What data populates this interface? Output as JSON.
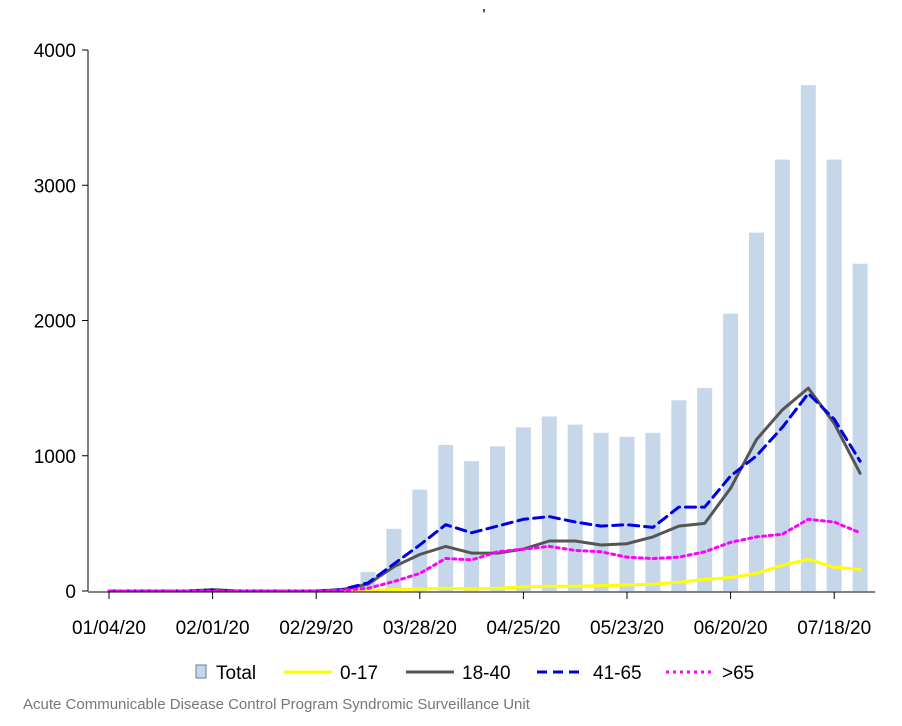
{
  "chart_data": {
    "type": "bar",
    "title": "'",
    "xlabel": "",
    "ylabel": "",
    "ylim": [
      0,
      4000
    ],
    "yticks": [
      0,
      1000,
      2000,
      3000,
      4000
    ],
    "x": [
      "01/04/20",
      "01/11/20",
      "01/18/20",
      "01/25/20",
      "02/01/20",
      "02/08/20",
      "02/15/20",
      "02/22/20",
      "02/29/20",
      "03/07/20",
      "03/14/20",
      "03/21/20",
      "03/28/20",
      "04/04/20",
      "04/11/20",
      "04/18/20",
      "04/25/20",
      "05/02/20",
      "05/09/20",
      "05/16/20",
      "05/23/20",
      "05/30/20",
      "06/06/20",
      "06/13/20",
      "06/20/20",
      "06/27/20",
      "07/04/20",
      "07/11/20",
      "07/18/20",
      "07/25/20"
    ],
    "xticks": [
      "01/04/20",
      "02/01/20",
      "02/29/20",
      "03/28/20",
      "04/25/20",
      "05/23/20",
      "06/20/20",
      "07/18/20"
    ],
    "series": [
      {
        "name": "Total",
        "kind": "bar",
        "color": "#c6d7ea",
        "values": [
          0,
          0,
          0,
          0,
          0,
          0,
          0,
          0,
          0,
          0,
          140,
          460,
          750,
          1080,
          960,
          1070,
          1210,
          1290,
          1230,
          1170,
          1140,
          1170,
          1410,
          1500,
          2050,
          2650,
          3190,
          3740,
          3190,
          2420
        ]
      },
      {
        "name": "0-17",
        "kind": "line",
        "style": "solid",
        "color": "#ffff00",
        "values": [
          0,
          0,
          0,
          0,
          0,
          0,
          0,
          0,
          0,
          0,
          5,
          10,
          15,
          20,
          15,
          20,
          30,
          35,
          35,
          40,
          45,
          50,
          65,
          85,
          100,
          130,
          190,
          235,
          175,
          160
        ]
      },
      {
        "name": "18-40",
        "kind": "line",
        "style": "solid",
        "color": "#555555",
        "values": [
          0,
          0,
          0,
          0,
          10,
          0,
          0,
          0,
          0,
          10,
          50,
          180,
          270,
          330,
          280,
          280,
          310,
          370,
          370,
          340,
          350,
          400,
          480,
          500,
          760,
          1120,
          1340,
          1500,
          1240,
          870
        ]
      },
      {
        "name": "41-65",
        "kind": "line",
        "style": "dashed",
        "color": "#0000e0",
        "values": [
          0,
          0,
          0,
          0,
          5,
          0,
          0,
          0,
          0,
          10,
          60,
          200,
          340,
          490,
          430,
          480,
          530,
          550,
          510,
          480,
          490,
          470,
          620,
          620,
          850,
          1000,
          1210,
          1460,
          1270,
          960
        ]
      },
      {
        "name": ">65",
        "kind": "line",
        "style": "dotted",
        "color": "#ff00ff",
        "values": [
          0,
          0,
          0,
          0,
          0,
          0,
          0,
          0,
          0,
          5,
          20,
          70,
          130,
          240,
          230,
          290,
          310,
          330,
          300,
          290,
          250,
          240,
          250,
          290,
          360,
          400,
          420,
          530,
          510,
          430
        ]
      }
    ],
    "grid": false,
    "legend_position": "bottom"
  },
  "footer": {
    "source": "Acute Communicable Disease Control Program Syndromic Surveillance Unit"
  }
}
